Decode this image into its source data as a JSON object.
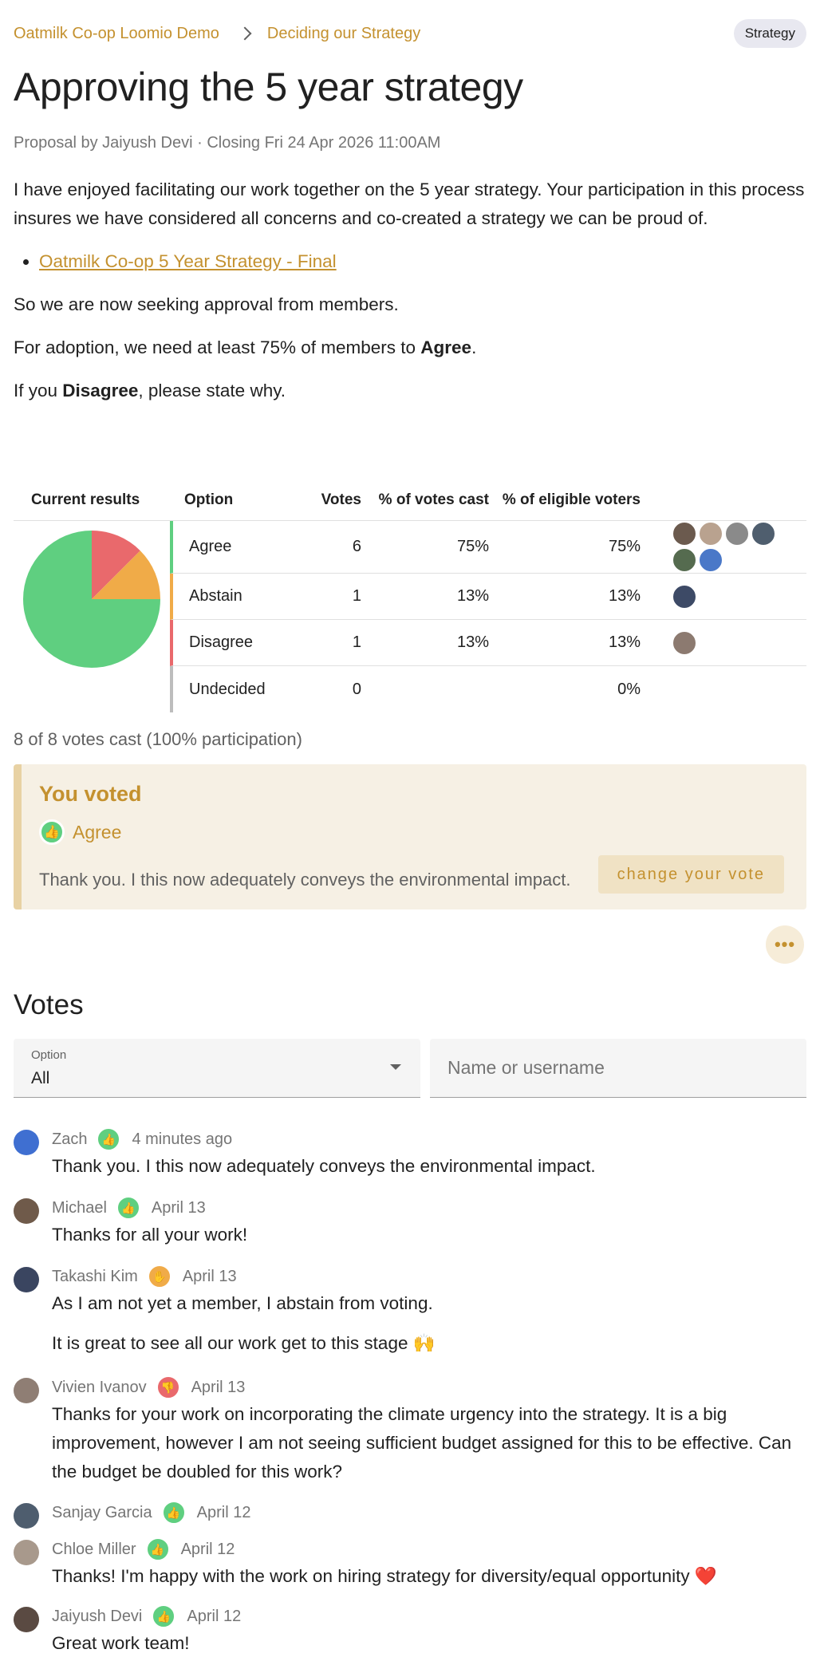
{
  "breadcrumb": {
    "group": "Oatmilk Co-op Loomio Demo",
    "thread": "Deciding our Strategy"
  },
  "tag": "Strategy",
  "proposal": {
    "title": "Approving the 5 year strategy",
    "meta": "Proposal by Jaiyush Devi · Closing Fri 24 Apr 2026 11:00AM",
    "paragraphs": {
      "intro": "I have enjoyed facilitating our work together on the 5 year strategy. Your participation in this process insures we have considered all concerns and co-created a strategy we can be proud of.",
      "link": "Oatmilk Co-op 5 Year Strategy - Final",
      "seeking": "So we are now seeking approval from members.",
      "adoption_pre": "For adoption, we need at least 75% of members to ",
      "adoption_bold": "Agree",
      "adoption_post": ".",
      "disagree_pre": "If you ",
      "disagree_bold": "Disagree",
      "disagree_post": ", please state why."
    }
  },
  "results": {
    "headers": {
      "current": "Current results",
      "option": "Option",
      "votes": "Votes",
      "pct_cast": "% of votes cast",
      "pct_eligible": "% of eligible voters"
    },
    "rows": [
      {
        "option": "Agree",
        "votes": "6",
        "pct_cast": "75%",
        "pct_eligible": "75%",
        "color": "#5fcf80",
        "avatars": [
          "#6b5a4e",
          "#b9a28f",
          "#8a8a8a",
          "#4f5e6e",
          "#556b4f",
          "#4a78c8"
        ]
      },
      {
        "option": "Abstain",
        "votes": "1",
        "pct_cast": "13%",
        "pct_eligible": "13%",
        "color": "#f0ab48",
        "avatars": [
          "#3d4a66"
        ]
      },
      {
        "option": "Disagree",
        "votes": "1",
        "pct_cast": "13%",
        "pct_eligible": "13%",
        "color": "#e9696c",
        "avatars": [
          "#8c7a70"
        ]
      },
      {
        "option": "Undecided",
        "votes": "0",
        "pct_cast": "",
        "pct_eligible": "0%",
        "color": "#bdbdbd",
        "avatars": []
      }
    ],
    "participation": "8 of 8 votes cast (100% participation)"
  },
  "chart_data": {
    "type": "pie",
    "categories": [
      "Agree",
      "Abstain",
      "Disagree"
    ],
    "values": [
      6,
      1,
      1
    ],
    "colors": [
      "#5fcf80",
      "#f0ab48",
      "#e9696c"
    ]
  },
  "your_vote": {
    "title": "You voted",
    "choice": "Agree",
    "reason": "Thank you. I this now adequately conveys the environmental impact.",
    "change_label": "change your vote"
  },
  "more_label": "•••",
  "votes_section": {
    "heading": "Votes",
    "filter_label": "Option",
    "filter_value": "All",
    "search_placeholder": "Name or username"
  },
  "votes": [
    {
      "name": "Zach",
      "stance": "agree",
      "time": "4 minutes ago",
      "avatar": "#3f6fd1",
      "body": [
        "Thank you. I this now adequately conveys the environmental impact."
      ]
    },
    {
      "name": "Michael",
      "stance": "agree",
      "time": "April 13",
      "avatar": "#6f5a4a",
      "body": [
        "Thanks for all your work!"
      ]
    },
    {
      "name": "Takashi Kim",
      "stance": "abstain",
      "time": "April 13",
      "avatar": "#3a4560",
      "body": [
        "As I am not yet a member, I abstain from voting.",
        "It is great to see all our work get to this stage 🙌"
      ]
    },
    {
      "name": "Vivien Ivanov",
      "stance": "disagree",
      "time": "April 13",
      "avatar": "#8f7e74",
      "body": [
        "Thanks for your work on incorporating the climate urgency into the strategy. It is a big improvement, however I am not seeing sufficient budget assigned for this to be effective. Can the budget be doubled for this work?"
      ]
    },
    {
      "name": "Sanjay Garcia",
      "stance": "agree",
      "time": "April 12",
      "avatar": "#4e5d6e",
      "body": []
    },
    {
      "name": "Chloe Miller",
      "stance": "agree",
      "time": "April 12",
      "avatar": "#a8998c",
      "body": [
        "Thanks! I'm happy with the work on hiring strategy for diversity/equal opportunity ❤️"
      ]
    },
    {
      "name": "Jaiyush Devi",
      "stance": "agree",
      "time": "April 12",
      "avatar": "#5a4a42",
      "body": [
        "Great work team!"
      ]
    }
  ],
  "stance_colors": {
    "agree": "#5fcf80",
    "abstain": "#f0ab48",
    "disagree": "#e9696c"
  },
  "stance_icons": {
    "agree": "thumbs-up-icon",
    "abstain": "hand-icon",
    "disagree": "thumbs-down-icon"
  }
}
